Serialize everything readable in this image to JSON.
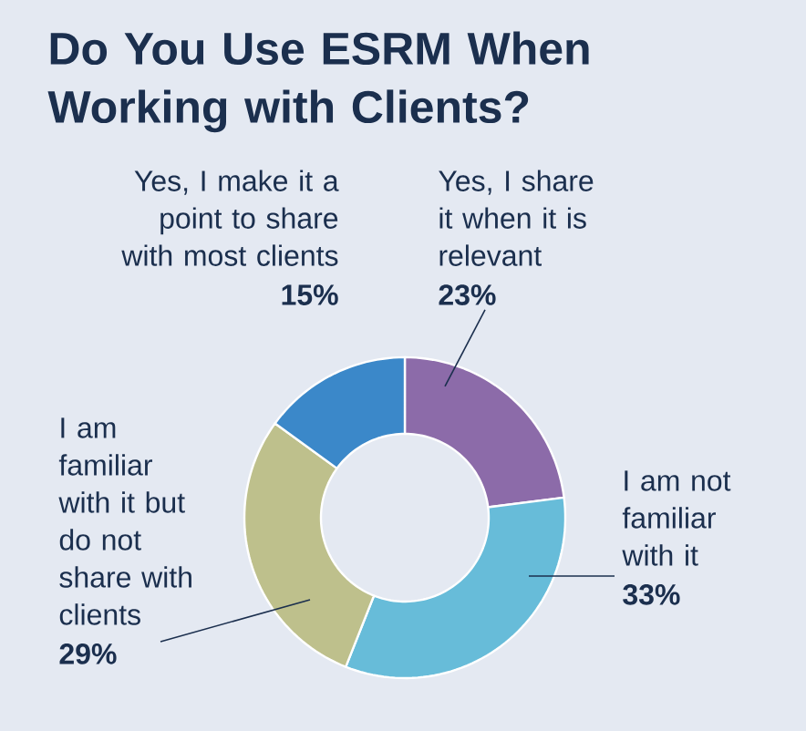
{
  "chart_data": {
    "type": "donut",
    "title": "Do You Use ESRM When Working with Clients?",
    "categories": [
      "Yes, I share it when it is relevant",
      "I am not familiar with it",
      "I am familiar with it but do not share with clients",
      "Yes, I make it a point to share with most clients"
    ],
    "values": [
      23,
      33,
      29,
      15
    ],
    "value_labels": [
      "23%",
      "33%",
      "29%",
      "15%"
    ],
    "colors": [
      "#8c6ba9",
      "#67bcd9",
      "#bec08c",
      "#3b88c9"
    ]
  }
}
